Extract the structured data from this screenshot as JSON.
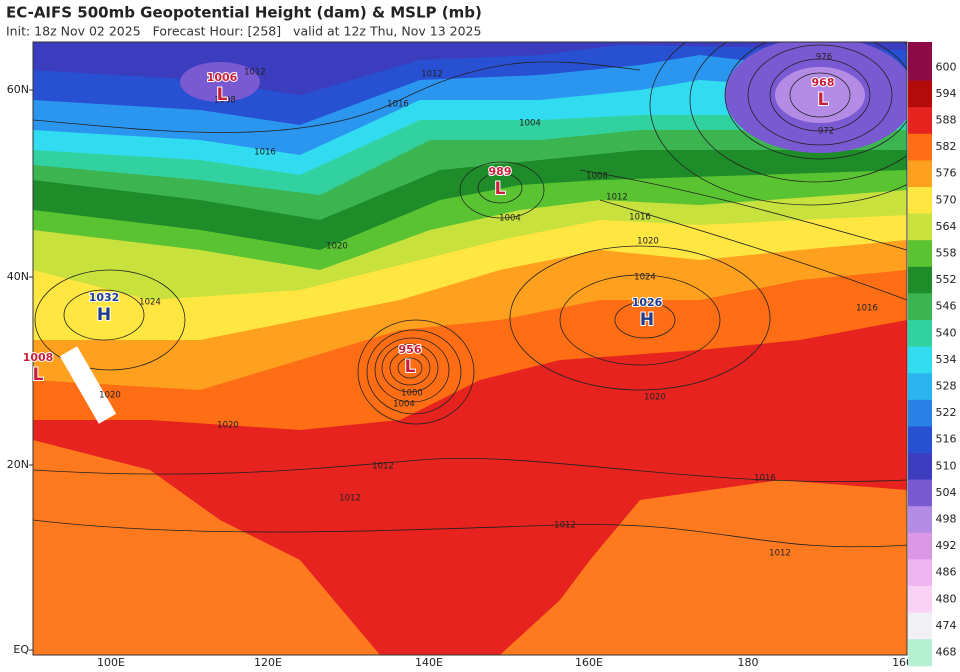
{
  "header": {
    "title": "EC-AIFS 500mb Geopotential Height (dam) & MSLP (mb)",
    "subtitle": "Init: 18z Nov 02 2025   Forecast Hour: [258]   valid at 12z Thu, Nov 13 2025"
  },
  "map": {
    "lat_labels": [
      "60N",
      "40N",
      "20N",
      "EQ"
    ],
    "lon_labels": [
      "100E",
      "120E",
      "140E",
      "160E",
      "180",
      "160W"
    ],
    "centers": [
      {
        "symbol": "L",
        "value": "1006"
      },
      {
        "symbol": "L",
        "value": "989"
      },
      {
        "symbol": "L",
        "value": "956"
      },
      {
        "symbol": "L",
        "value": "968"
      },
      {
        "symbol": "H",
        "value": "1026"
      },
      {
        "symbol": "H",
        "value": "1032"
      },
      {
        "symbol": "L",
        "value": "1008"
      }
    ],
    "isobar_labels": [
      "1012",
      "1008",
      "1012",
      "1016",
      "1016",
      "1004",
      "1008",
      "1012",
      "1016",
      "1020",
      "1024",
      "1020",
      "1016",
      "1012",
      "1012",
      "1012",
      "1016",
      "972",
      "976",
      "1024",
      "1020",
      "1020",
      "1000",
      "1004",
      "1004",
      "1020",
      "1012"
    ]
  },
  "colorbar": {
    "labels": [
      600,
      594,
      588,
      582,
      576,
      570,
      564,
      558,
      552,
      546,
      540,
      534,
      528,
      522,
      516,
      510,
      504,
      498,
      492,
      486,
      480,
      474,
      468
    ],
    "colors": [
      "#8c0a46",
      "#b40a0a",
      "#e6231e",
      "#ff6e14",
      "#ffa01e",
      "#ffe641",
      "#c8e13c",
      "#5ac332",
      "#1e8c28",
      "#3cb450",
      "#32d2a0",
      "#32dcf0",
      "#2ab4f0",
      "#2882e6",
      "#2850d2",
      "#3c3cbe",
      "#7a5ad2",
      "#b48ce6",
      "#dc96e6",
      "#f0b4f0",
      "#fad2f5",
      "#f0f0f5",
      "#b4f0d2"
    ]
  }
}
